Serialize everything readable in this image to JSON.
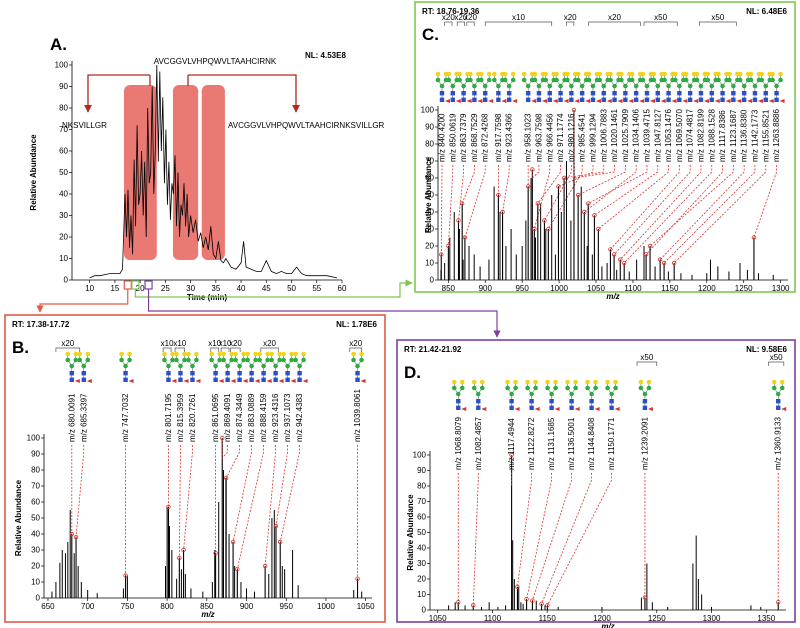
{
  "chart_data": [
    {
      "type": "line",
      "label": "A.",
      "nl": "NL: 4.53E8",
      "xlabel": "Time (min)",
      "ylabel": "Relative Abundance",
      "xlim": [
        6.5,
        60
      ],
      "ylim": [
        0,
        100
      ],
      "xticks": [
        10,
        15,
        20,
        25,
        30,
        35,
        40,
        45,
        50,
        55,
        60
      ],
      "yticks": [
        0,
        10,
        20,
        30,
        40,
        50,
        60,
        70,
        80,
        90,
        100
      ],
      "color": "#000000",
      "x": [
        10,
        11,
        12,
        13,
        14,
        15,
        16,
        16.5,
        17,
        17.3,
        17.6,
        17.9,
        18.2,
        18.5,
        18.8,
        19.1,
        19.4,
        19.7,
        20,
        20.3,
        20.6,
        20.9,
        21.2,
        21.5,
        21.8,
        22.1,
        22.4,
        22.7,
        23,
        23.3,
        23.6,
        23.9,
        24.2,
        24.5,
        24.8,
        25.1,
        25.4,
        25.7,
        26,
        26.3,
        26.6,
        26.9,
        27.2,
        27.5,
        27.8,
        28.1,
        28.4,
        28.7,
        29,
        29.3,
        29.6,
        30,
        30.5,
        31,
        31.5,
        32,
        32.5,
        33,
        33.5,
        34,
        34.5,
        35,
        35.5,
        36,
        36.5,
        37,
        38,
        39,
        40,
        40.5,
        41,
        42,
        43,
        44,
        45,
        46,
        47,
        48,
        49,
        50,
        51,
        52,
        53,
        55,
        57,
        59
      ],
      "values": [
        1,
        2,
        2,
        2.5,
        3,
        3,
        3,
        5,
        40,
        20,
        42,
        15,
        30,
        12,
        56,
        25,
        72,
        35,
        40,
        60,
        30,
        55,
        20,
        80,
        45,
        50,
        90,
        40,
        60,
        100,
        55,
        97,
        60,
        85,
        45,
        70,
        35,
        55,
        28,
        45,
        40,
        58,
        25,
        50,
        20,
        35,
        30,
        45,
        25,
        40,
        20,
        30,
        22,
        28,
        18,
        22,
        15,
        20,
        14,
        25,
        12,
        10,
        18,
        9,
        8,
        10,
        6,
        5,
        8,
        18,
        6,
        5,
        4,
        4,
        9,
        4,
        3,
        4,
        3,
        3,
        6,
        3,
        2,
        2,
        2,
        1
      ],
      "highlights": [
        {
          "from": 16.8,
          "to": 23.3,
          "color": "#e8625a"
        },
        {
          "from": 26.5,
          "to": 31.5,
          "color": "#e8625a"
        },
        {
          "from": 32.2,
          "to": 36.8,
          "color": "#e8625a"
        }
      ],
      "windows": [
        {
          "from": 17.38,
          "to": 17.72,
          "color": "#e05a47"
        },
        {
          "from": 18.76,
          "to": 19.36,
          "color": "#7dc855"
        },
        {
          "from": 21.42,
          "to": 21.92,
          "color": "#7f3fa0"
        }
      ],
      "peptides": [
        "AVCGGVLVHPQWVLTAAHCIRNK",
        "NKSVILLGR",
        "AVCGGVLVHPQWVLTAAHCIRNKSVILLGR"
      ],
      "arrow_color": "#b0281e"
    },
    {
      "type": "spectrum",
      "label": "B.",
      "rt": "RT: 17.38-17.72",
      "nl": "NL: 1.78E6",
      "xlabel": "m/z",
      "ylabel": "Relative Abundance",
      "xlim": [
        645,
        1058
      ],
      "ylim": [
        0,
        100
      ],
      "xticks": [
        650,
        700,
        750,
        800,
        850,
        900,
        950,
        1000,
        1050
      ],
      "yticks": [
        0,
        10,
        20,
        30,
        40,
        50,
        60,
        70,
        80,
        90,
        100
      ],
      "color": "#000000",
      "frame_color": "#e05a47",
      "annotation_color": "#d9322b",
      "x": [
        655,
        660,
        665,
        668,
        672,
        675,
        678,
        683,
        688,
        692,
        700,
        712,
        745,
        750,
        798,
        800,
        803,
        806,
        812,
        818,
        823,
        830,
        845,
        857,
        860,
        865,
        871,
        874,
        878,
        885,
        893,
        900,
        910,
        928,
        932,
        935,
        945,
        948,
        958,
        965,
        1035,
        1045
      ],
      "values": [
        4,
        10,
        22,
        30,
        28,
        35,
        55,
        28,
        20,
        10,
        5,
        3,
        6,
        14,
        20,
        57,
        45,
        30,
        12,
        18,
        15,
        6,
        4,
        10,
        30,
        60,
        80,
        75,
        40,
        20,
        10,
        6,
        4,
        15,
        50,
        55,
        20,
        18,
        30,
        8,
        5,
        4
      ],
      "annotations": [
        {
          "mz": 680.0091,
          "label": "m/z 680.0091",
          "intensity": 40
        },
        {
          "mz": 685.3397,
          "label": "m/z 685.3397",
          "intensity": 38
        },
        {
          "mz": 747.7032,
          "label": "m/z 747.7032",
          "intensity": 14
        },
        {
          "mz": 801.7195,
          "label": "m/z 801.7195",
          "intensity": 57
        },
        {
          "mz": 815.3959,
          "label": "m/z 815.3959",
          "intensity": 25
        },
        {
          "mz": 820.7261,
          "label": "m/z 820.7261",
          "intensity": 30
        },
        {
          "mz": 861.0695,
          "label": "m/z 861.0695",
          "intensity": 28
        },
        {
          "mz": 869.4091,
          "label": "m/z 869.4091",
          "intensity": 100
        },
        {
          "mz": 874.3449,
          "label": "m/z 874.3449",
          "intensity": 75
        },
        {
          "mz": 883.0889,
          "label": "m/z 883.0889",
          "intensity": 35
        },
        {
          "mz": 888.4159,
          "label": "m/z 888.4159",
          "intensity": 18
        },
        {
          "mz": 923.4316,
          "label": "m/z 923.4316",
          "intensity": 20
        },
        {
          "mz": 937.1073,
          "label": "m/z 937.1073",
          "intensity": 45
        },
        {
          "mz": 942.4383,
          "label": "m/z 942.4383",
          "intensity": 35
        },
        {
          "mz": 1039.8061,
          "label": "m/z 1039.8061",
          "intensity": 12
        }
      ],
      "zooms": [
        {
          "label": "x20",
          "from": 660,
          "to": 690
        },
        {
          "label": "x10",
          "from": 795,
          "to": 805
        },
        {
          "label": "x10",
          "from": 810,
          "to": 822
        },
        {
          "label": "x10",
          "from": 855,
          "to": 865
        },
        {
          "label": "x10",
          "from": 868,
          "to": 878
        },
        {
          "label": "x20",
          "from": 880,
          "to": 892
        },
        {
          "label": "x20",
          "from": 918,
          "to": 940
        },
        {
          "label": "x20",
          "from": 1030,
          "to": 1045
        }
      ]
    },
    {
      "type": "spectrum",
      "label": "C.",
      "rt": "RT: 18.76-19.36",
      "nl": "NL: 6.48E6",
      "xlabel": "m/z",
      "ylabel": "Relative Abundance",
      "xlim": [
        836,
        1310
      ],
      "ylim": [
        0,
        100
      ],
      "xticks": [
        850,
        900,
        950,
        1000,
        1050,
        1100,
        1150,
        1200,
        1250,
        1300
      ],
      "yticks": [
        0,
        10,
        20,
        30,
        40,
        50,
        60,
        70,
        80,
        90,
        100
      ],
      "color": "#000000",
      "frame_color": "#7dc855",
      "annotation_color": "#d9322b",
      "x": [
        840,
        845,
        852,
        858,
        865,
        870,
        878,
        885,
        893,
        905,
        912,
        920,
        928,
        935,
        942,
        950,
        955,
        962,
        968,
        975,
        982,
        990,
        995,
        1003,
        1010,
        1016,
        1030,
        1038,
        1045,
        1058,
        1065,
        1078,
        1095,
        1105,
        1115,
        1130,
        1148,
        1165,
        1180,
        1200,
        1205,
        1215,
        1230,
        1245,
        1255,
        1270,
        1290
      ],
      "values": [
        6,
        10,
        25,
        40,
        30,
        12,
        20,
        15,
        8,
        12,
        55,
        40,
        20,
        30,
        15,
        20,
        35,
        60,
        25,
        45,
        30,
        50,
        15,
        40,
        70,
        35,
        55,
        20,
        15,
        8,
        10,
        6,
        5,
        12,
        20,
        8,
        5,
        4,
        3,
        4,
        12,
        8,
        5,
        10,
        6,
        4,
        3
      ],
      "annotations": [
        {
          "mz": 840.42,
          "label": "m/z 840.4200",
          "intensity": 15
        },
        {
          "mz": 850.0619,
          "label": "m/z 850.0619",
          "intensity": 20
        },
        {
          "mz": 863.7379,
          "label": "m/z 863.7379",
          "intensity": 35
        },
        {
          "mz": 868.7529,
          "label": "m/z 868.7529",
          "intensity": 45
        },
        {
          "mz": 872.4268,
          "label": "m/z 872.4268",
          "intensity": 25
        },
        {
          "mz": 917.7598,
          "label": "m/z 917.7598",
          "intensity": 50
        },
        {
          "mz": 923.4366,
          "label": "m/z 923.4366",
          "intensity": 40
        },
        {
          "mz": 958.1023,
          "label": "m/z 958.1023",
          "intensity": 55
        },
        {
          "mz": 963.7598,
          "label": "m/z 963.7598",
          "intensity": 65
        },
        {
          "mz": 966.4456,
          "label": "m/z 966.4456",
          "intensity": 30
        },
        {
          "mz": 971.1774,
          "label": "m/z 971.1774",
          "intensity": 45
        },
        {
          "mz": 980.1216,
          "label": "m/z 980.1216",
          "intensity": 35
        },
        {
          "mz": 985.4541,
          "label": "m/z 985.4541",
          "intensity": 30
        },
        {
          "mz": 999.1294,
          "label": "m/z 999.1294",
          "intensity": 55
        },
        {
          "mz": 1006.7883,
          "label": "m/z 1006.7883",
          "intensity": 60
        },
        {
          "mz": 1020.1461,
          "label": "m/z 1020.1461",
          "intensity": 100
        },
        {
          "mz": 1025.7909,
          "label": "m/z 1025.7909",
          "intensity": 50
        },
        {
          "mz": 1034.1406,
          "label": "m/z 1034.1406",
          "intensity": 40
        },
        {
          "mz": 1039.4715,
          "label": "m/z 1039.4715",
          "intensity": 45
        },
        {
          "mz": 1047.8127,
          "label": "m/z 1047.8127",
          "intensity": 38
        },
        {
          "mz": 1053.1476,
          "label": "m/z 1053.1476",
          "intensity": 30
        },
        {
          "mz": 1069.507,
          "label": "m/z 1069.5070",
          "intensity": 18
        },
        {
          "mz": 1074.4817,
          "label": "m/z 1074.4817",
          "intensity": 15
        },
        {
          "mz": 1082.8199,
          "label": "m/z 1082.8199",
          "intensity": 12
        },
        {
          "mz": 1088.1528,
          "label": "m/z 1088.1528",
          "intensity": 10
        },
        {
          "mz": 1117.8386,
          "label": "m/z 1117.8386",
          "intensity": 15
        },
        {
          "mz": 1123.1687,
          "label": "m/z 1123.1687",
          "intensity": 20
        },
        {
          "mz": 1136.838,
          "label": "m/z 1136.8380",
          "intensity": 12
        },
        {
          "mz": 1142.1773,
          "label": "m/z 1142.1773",
          "intensity": 10
        },
        {
          "mz": 1155.8521,
          "label": "m/z 1155.8521",
          "intensity": 10
        },
        {
          "mz": 1263.8886,
          "label": "m/z 1263.8886",
          "intensity": 25
        }
      ],
      "zooms": [
        {
          "label": "x20",
          "from": 845,
          "to": 855
        },
        {
          "label": "x20",
          "from": 862,
          "to": 872
        },
        {
          "label": "x20",
          "from": 875,
          "to": 885
        },
        {
          "label": "x10",
          "from": 900,
          "to": 990
        },
        {
          "label": "x20",
          "from": 1010,
          "to": 1020
        },
        {
          "label": "x20",
          "from": 1040,
          "to": 1110
        },
        {
          "label": "x50",
          "from": 1115,
          "to": 1160
        },
        {
          "label": "x50",
          "from": 1190,
          "to": 1240
        }
      ]
    },
    {
      "type": "spectrum",
      "label": "D.",
      "rt": "RT: 21.42-21.92",
      "nl": "NL: 9.58E6",
      "xlabel": "m/z",
      "ylabel": "Relative Abundance",
      "xlim": [
        1043,
        1368
      ],
      "ylim": [
        0,
        100
      ],
      "xticks": [
        1050,
        1100,
        1150,
        1200,
        1250,
        1300,
        1350
      ],
      "yticks": [
        0,
        10,
        20,
        30,
        40,
        50,
        60,
        70,
        80,
        90,
        100
      ],
      "color": "#000000",
      "frame_color": "#7f3fa0",
      "annotation_color": "#d9322b",
      "x": [
        1060,
        1066,
        1075,
        1090,
        1097,
        1105,
        1112,
        1118.5,
        1120,
        1124,
        1126,
        1128,
        1140,
        1148,
        1160,
        1200,
        1236,
        1241,
        1246,
        1260,
        1283,
        1286,
        1288,
        1291,
        1300,
        1336,
        1345
      ],
      "values": [
        3,
        5,
        3,
        2,
        5,
        2,
        3,
        45,
        20,
        15,
        5,
        4,
        6,
        3,
        2,
        2,
        8,
        30,
        5,
        2,
        30,
        48,
        20,
        10,
        2,
        3,
        2
      ],
      "annotations": [
        {
          "mz": 1068.8079,
          "label": "m/z 1068.8079",
          "intensity": 5
        },
        {
          "mz": 1082.4857,
          "label": "m/z 1082.4857",
          "intensity": 3
        },
        {
          "mz": 1117.4944,
          "label": "m/z 1117.4944",
          "intensity": 100
        },
        {
          "mz": 1122.8272,
          "label": "m/z 1122.8272",
          "intensity": 15
        },
        {
          "mz": 1131.1685,
          "label": "m/z 1131.1685",
          "intensity": 7
        },
        {
          "mz": 1136.5001,
          "label": "m/z 1136.5001",
          "intensity": 6
        },
        {
          "mz": 1144.8408,
          "label": "m/z 1144.8408",
          "intensity": 4
        },
        {
          "mz": 1150.1771,
          "label": "m/z 1150.1771",
          "intensity": 3
        },
        {
          "mz": 1239.2091,
          "label": "m/z 1239.2091",
          "intensity": 8
        },
        {
          "mz": 1360.9133,
          "label": "m/z 1360.9133",
          "intensity": 5
        }
      ],
      "zooms": [
        {
          "label": "x50",
          "from": 1232,
          "to": 1250
        },
        {
          "label": "x50",
          "from": 1352,
          "to": 1366
        }
      ]
    }
  ]
}
